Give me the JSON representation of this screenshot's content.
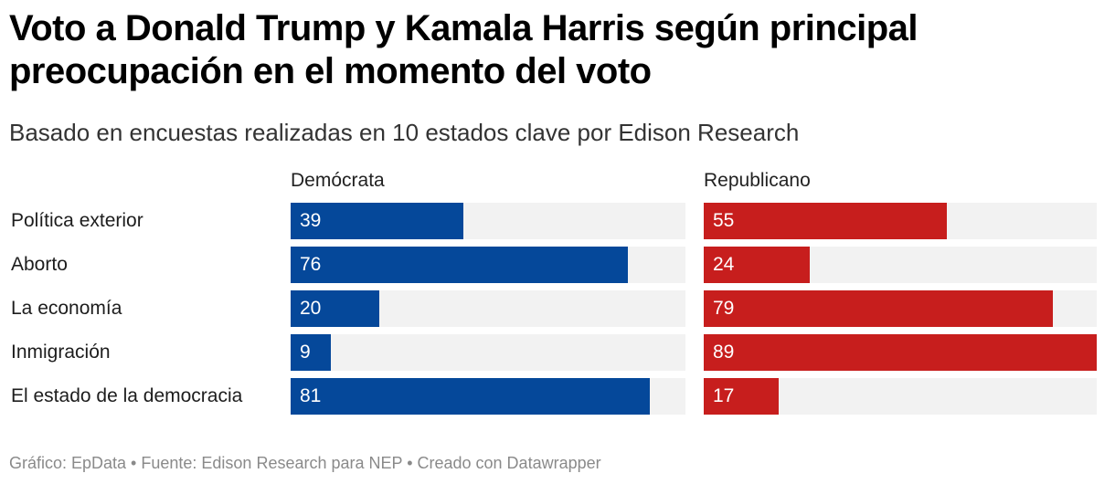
{
  "header": {
    "title": "Voto a Donald Trump y Kamala Harris según principal preocupación en el momento del voto",
    "subtitle": "Basado en encuestas realizadas en 10 estados clave por Edison Research"
  },
  "footer": {
    "text": "Gráfico: EpData • Fuente: Edison Research para NEP • Creado con Datawrapper"
  },
  "chart_data": {
    "type": "bar",
    "orientation": "horizontal",
    "title": "Voto a Donald Trump y Kamala Harris según principal preocupación en el momento del voto",
    "subtitle": "Basado en encuestas realizadas en 10 estados clave por Edison Research",
    "categories": [
      "Política exterior",
      "Aborto",
      "La economía",
      "Inmigración",
      "El estado de la democracia"
    ],
    "series": [
      {
        "name": "Demócrata",
        "color": "#05489a",
        "values": [
          39,
          76,
          20,
          9,
          81
        ]
      },
      {
        "name": "Republicano",
        "color": "#c71e1d",
        "values": [
          55,
          24,
          79,
          89,
          17
        ]
      }
    ],
    "xlim": [
      0,
      89
    ],
    "track_color": "#f2f2f2",
    "grid": false,
    "legend": "panel-headers",
    "xlabel": "",
    "ylabel": ""
  }
}
